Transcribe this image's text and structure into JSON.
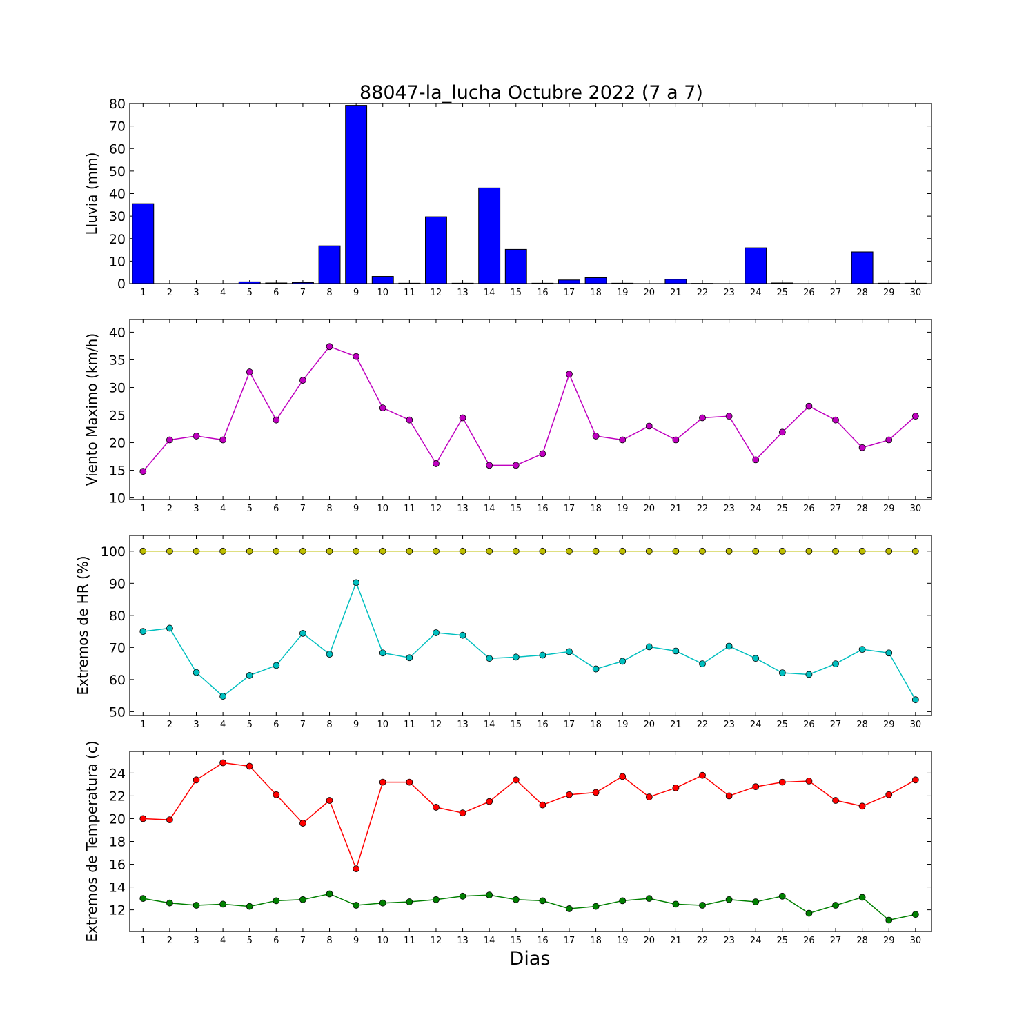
{
  "title": "88047-la_lucha Octubre 2022  (7 a 7)",
  "xlabel": "Dias",
  "chart_data": [
    {
      "type": "bar",
      "ylabel": "Lluvia (mm)",
      "ylim": [
        0,
        80
      ],
      "yticks": [
        0,
        10,
        20,
        30,
        40,
        50,
        60,
        70,
        80
      ],
      "x": [
        1,
        2,
        3,
        4,
        5,
        6,
        7,
        8,
        9,
        10,
        11,
        12,
        13,
        14,
        15,
        16,
        17,
        18,
        19,
        20,
        21,
        22,
        23,
        24,
        25,
        26,
        27,
        28,
        29,
        30
      ],
      "series": [
        {
          "color": "#0000ff",
          "values": [
            35.5,
            0,
            0,
            0,
            0.8,
            0.3,
            0.5,
            16.8,
            79.2,
            3.2,
            0.2,
            29.7,
            0.2,
            42.5,
            15.2,
            0.2,
            1.6,
            2.6,
            0.2,
            0,
            1.9,
            0.1,
            0,
            15.9,
            0.3,
            0,
            0,
            14.1,
            0.2,
            0.2
          ]
        }
      ]
    },
    {
      "type": "line",
      "ylabel": "Viento Maximo (km/h)",
      "ylim": [
        9.7,
        42.3
      ],
      "yticks": [
        10,
        15,
        20,
        25,
        30,
        35,
        40
      ],
      "x": [
        1,
        2,
        3,
        4,
        5,
        6,
        7,
        8,
        9,
        10,
        11,
        12,
        13,
        14,
        15,
        16,
        17,
        18,
        19,
        20,
        21,
        22,
        23,
        24,
        25,
        26,
        27,
        28,
        29,
        30
      ],
      "series": [
        {
          "color": "#bf00bf",
          "values": [
            14.8,
            20.5,
            21.2,
            20.5,
            32.8,
            24.1,
            31.3,
            37.4,
            35.6,
            26.3,
            24.1,
            16.2,
            24.5,
            15.9,
            15.9,
            18.0,
            32.4,
            21.2,
            20.5,
            23.0,
            20.5,
            24.5,
            24.8,
            16.9,
            21.9,
            26.6,
            24.1,
            19.1,
            20.5,
            24.8
          ]
        }
      ]
    },
    {
      "type": "line",
      "ylabel": "Extremos de HR (%)",
      "ylim": [
        48.8,
        104.9
      ],
      "yticks": [
        50,
        60,
        70,
        80,
        90,
        100
      ],
      "x": [
        1,
        2,
        3,
        4,
        5,
        6,
        7,
        8,
        9,
        10,
        11,
        12,
        13,
        14,
        15,
        16,
        17,
        18,
        19,
        20,
        21,
        22,
        23,
        24,
        25,
        26,
        27,
        28,
        29,
        30
      ],
      "series": [
        {
          "color": "#bfbf00",
          "values": [
            100,
            100,
            100,
            100,
            100,
            100,
            100,
            100,
            100,
            100,
            100,
            100,
            100,
            100,
            100,
            100,
            100,
            100,
            100,
            100,
            100,
            100,
            100,
            100,
            100,
            100,
            100,
            100,
            100,
            100
          ]
        },
        {
          "color": "#00bfbf",
          "values": [
            75.0,
            76.0,
            62.2,
            54.8,
            61.3,
            64.4,
            74.4,
            67.9,
            90.2,
            68.3,
            66.8,
            74.6,
            73.8,
            66.6,
            67.0,
            67.6,
            68.7,
            63.3,
            65.7,
            70.2,
            68.9,
            64.9,
            70.4,
            66.6,
            62.1,
            61.6,
            64.9,
            69.4,
            68.3,
            53.7
          ]
        }
      ]
    },
    {
      "type": "line",
      "ylabel": "Extremos de Temperatura (c)",
      "ylim": [
        10.1,
        25.9
      ],
      "yticks": [
        12,
        14,
        16,
        18,
        20,
        22,
        24
      ],
      "x": [
        1,
        2,
        3,
        4,
        5,
        6,
        7,
        8,
        9,
        10,
        11,
        12,
        13,
        14,
        15,
        16,
        17,
        18,
        19,
        20,
        21,
        22,
        23,
        24,
        25,
        26,
        27,
        28,
        29,
        30
      ],
      "series": [
        {
          "color": "#ff0000",
          "values": [
            20.0,
            19.9,
            23.4,
            24.9,
            24.6,
            22.1,
            19.6,
            21.6,
            15.6,
            23.2,
            23.2,
            21.0,
            20.5,
            21.5,
            23.4,
            21.2,
            22.1,
            22.3,
            23.7,
            21.9,
            22.7,
            23.8,
            22.0,
            22.8,
            23.2,
            23.3,
            21.6,
            21.1,
            22.1,
            23.4
          ]
        },
        {
          "color": "#008000",
          "values": [
            13.0,
            12.6,
            12.4,
            12.5,
            12.3,
            12.8,
            12.9,
            13.4,
            12.4,
            12.6,
            12.7,
            12.9,
            13.2,
            13.3,
            12.9,
            12.8,
            12.1,
            12.3,
            12.8,
            13.0,
            12.5,
            12.4,
            12.9,
            12.7,
            13.2,
            11.7,
            12.4,
            13.1,
            11.1,
            11.6
          ]
        }
      ]
    }
  ]
}
